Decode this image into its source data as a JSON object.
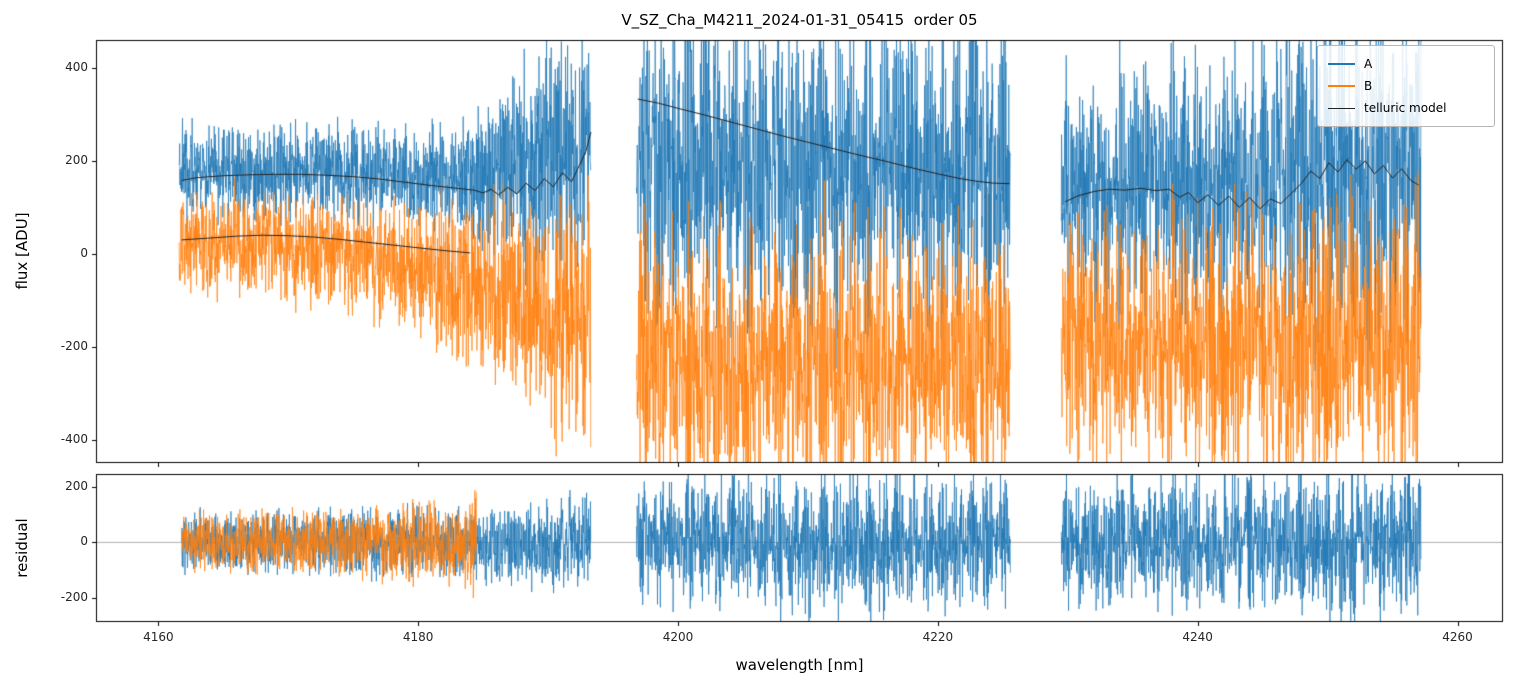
{
  "chart_data": {
    "type": "line",
    "title": "V_SZ_Cha_M4211_2024-01-31_05415  order 05",
    "xlabel": "wavelength [nm]",
    "xlim": [
      4155.2,
      4263.5
    ],
    "x_ticks": [
      4160,
      4180,
      4200,
      4220,
      4240,
      4260
    ],
    "step": 0.02,
    "panels": [
      {
        "ylabel": "flux [ADU]",
        "ylim": [
          -450,
          460
        ],
        "y_ticks": [
          -400,
          -200,
          0,
          200,
          400
        ],
        "zero_line": false
      },
      {
        "ylabel": "residual",
        "ylim": [
          -285,
          245
        ],
        "y_ticks": [
          -200,
          0,
          200
        ],
        "zero_line": true
      }
    ],
    "legend": [
      {
        "label": "A",
        "color": "#1f77b4",
        "lw": 2
      },
      {
        "label": "B",
        "color": "#ff7f0e",
        "lw": 2
      },
      {
        "label": "telluric model",
        "color": "#222222",
        "lw": 1
      }
    ],
    "series": [
      {
        "name": "A",
        "type": "noisy",
        "panel": 0,
        "color": "#1f77b4",
        "lw": 0.7,
        "seed": 3,
        "segments": [
          {
            "range": [
              4161.6,
              4193.3
            ],
            "period": 0.4,
            "mix": 0.35,
            "base": [
              [
                4162,
                175
              ],
              [
                4170,
                178
              ],
              [
                4178,
                170
              ],
              [
                4183,
                162
              ],
              [
                4186,
                168
              ],
              [
                4189,
                190
              ],
              [
                4193.3,
                230
              ]
            ],
            "amp": [
              [
                4162,
                130
              ],
              [
                4178,
                130
              ],
              [
                4183,
                150
              ],
              [
                4186,
                220
              ],
              [
                4189,
                300
              ],
              [
                4193.3,
                360
              ]
            ]
          },
          {
            "range": [
              4196.8,
              4225.6
            ],
            "period": 1.15,
            "mix": 0.7,
            "base": [
              [
                4197,
                200
              ],
              [
                4205,
                190
              ],
              [
                4215,
                185
              ],
              [
                4225.6,
                185
              ]
            ],
            "amp": [
              [
                4197,
                460
              ],
              [
                4205,
                480
              ],
              [
                4215,
                450
              ],
              [
                4225.6,
                440
              ]
            ]
          },
          {
            "range": [
              4229.5,
              4257.2
            ],
            "period": 1.0,
            "mix": 0.65,
            "base": [
              [
                4230,
                155
              ],
              [
                4240,
                150
              ],
              [
                4250,
                175
              ],
              [
                4257.2,
                185
              ]
            ],
            "amp": [
              [
                4230,
                330
              ],
              [
                4240,
                380
              ],
              [
                4250,
                480
              ],
              [
                4257.2,
                520
              ]
            ]
          }
        ]
      },
      {
        "name": "B",
        "type": "noisy",
        "panel": 0,
        "color": "#ff7f0e",
        "lw": 0.7,
        "seed": 7,
        "segments": [
          {
            "range": [
              4161.6,
              4193.3
            ],
            "period": 0.4,
            "mix": 0.35,
            "base": [
              [
                4162,
                28
              ],
              [
                4168,
                22
              ],
              [
                4174,
                2
              ],
              [
                4180,
                -35
              ],
              [
                4184,
                -65
              ],
              [
                4188,
                -105
              ],
              [
                4193.3,
                -140
              ]
            ],
            "amp": [
              [
                4162,
                140
              ],
              [
                4170,
                150
              ],
              [
                4178,
                170
              ],
              [
                4184,
                220
              ],
              [
                4189,
                300
              ],
              [
                4193.3,
                380
              ]
            ]
          },
          {
            "range": [
              4196.8,
              4225.6
            ],
            "period": 1.15,
            "mix": 0.7,
            "base": [
              [
                4197,
                -225
              ],
              [
                4205,
                -245
              ],
              [
                4215,
                -240
              ],
              [
                4225.6,
                -230
              ]
            ],
            "amp": [
              [
                4197,
                400
              ],
              [
                4205,
                430
              ],
              [
                4215,
                420
              ],
              [
                4225.6,
                400
              ]
            ]
          },
          {
            "range": [
              4229.5,
              4257.2
            ],
            "period": 1.0,
            "mix": 0.65,
            "base": [
              [
                4230,
                -185
              ],
              [
                4240,
                -205
              ],
              [
                4250,
                -195
              ],
              [
                4257.2,
                -190
              ]
            ],
            "amp": [
              [
                4230,
                360
              ],
              [
                4240,
                400
              ],
              [
                4250,
                440
              ],
              [
                4257.2,
                450
              ]
            ]
          }
        ]
      },
      {
        "name": "residual A",
        "type": "noisy",
        "panel": 1,
        "color": "#1f77b4",
        "lw": 0.7,
        "seed": 13,
        "segments": [
          {
            "range": [
              4161.8,
              4193.3
            ],
            "period": 0.4,
            "mix": 0.3,
            "base": [
              [
                4162,
                0
              ],
              [
                4193.3,
                0
              ]
            ],
            "amp": [
              [
                4162,
                130
              ],
              [
                4175,
                150
              ],
              [
                4184,
                160
              ],
              [
                4188,
                190
              ],
              [
                4193.3,
                220
              ]
            ]
          },
          {
            "range": [
              4196.8,
              4225.6
            ],
            "period": 1.15,
            "mix": 0.75,
            "base": [
              [
                4197,
                0
              ],
              [
                4225.6,
                0
              ]
            ],
            "amp": [
              [
                4197,
                300
              ],
              [
                4210,
                360
              ],
              [
                4225.6,
                320
              ]
            ]
          },
          {
            "range": [
              4229.5,
              4257.2
            ],
            "period": 1.0,
            "mix": 0.7,
            "base": [
              [
                4230,
                0
              ],
              [
                4257.2,
                0
              ]
            ],
            "amp": [
              [
                4230,
                300
              ],
              [
                4245,
                360
              ],
              [
                4257.2,
                400
              ]
            ]
          }
        ]
      },
      {
        "name": "residual B",
        "type": "noisy",
        "panel": 1,
        "color": "#ff7f0e",
        "lw": 0.7,
        "seed": 21,
        "segments": [
          {
            "range": [
              4161.8,
              4184.5
            ],
            "period": 0.4,
            "mix": 0.3,
            "base": [
              [
                4162,
                0
              ],
              [
                4184.5,
                0
              ]
            ],
            "amp": [
              [
                4162,
                130
              ],
              [
                4175,
                160
              ],
              [
                4183,
                180
              ],
              [
                4184.5,
                300
              ]
            ]
          }
        ]
      },
      {
        "name": "telluric model",
        "type": "model",
        "panel": 0,
        "color": "#222222",
        "lw": 1,
        "paths": [
          [
            [
              4161.8,
              158
            ],
            [
              4163,
              164
            ],
            [
              4165,
              168
            ],
            [
              4167,
              170
            ],
            [
              4169,
              171
            ],
            [
              4171,
              171
            ],
            [
              4173,
              169
            ],
            [
              4175,
              166
            ],
            [
              4177,
              161
            ],
            [
              4179,
              154
            ],
            [
              4181,
              147
            ],
            [
              4183,
              141
            ],
            [
              4184.3,
              137
            ],
            [
              4185,
              131
            ],
            [
              4185.6,
              139
            ],
            [
              4186.2,
              127
            ],
            [
              4186.9,
              143
            ],
            [
              4187.6,
              129
            ],
            [
              4188.3,
              152
            ],
            [
              4189,
              136
            ],
            [
              4189.7,
              162
            ],
            [
              4190.4,
              144
            ],
            [
              4191.1,
              175
            ],
            [
              4191.8,
              155
            ],
            [
              4192.4,
              190
            ],
            [
              4192.9,
              220
            ],
            [
              4193.3,
              262
            ]
          ],
          [
            [
              4161.8,
              30
            ],
            [
              4164,
              34
            ],
            [
              4166,
              38
            ],
            [
              4168,
              40
            ],
            [
              4170,
              39
            ],
            [
              4172,
              36
            ],
            [
              4174,
              31
            ],
            [
              4176,
              25
            ],
            [
              4178,
              19
            ],
            [
              4180,
              13
            ],
            [
              4182,
              7
            ],
            [
              4184,
              2
            ]
          ],
          [
            [
              4196.9,
              333
            ],
            [
              4198.5,
              324
            ],
            [
              4200,
              313
            ],
            [
              4202,
              299
            ],
            [
              4204,
              284
            ],
            [
              4206,
              269
            ],
            [
              4208,
              254
            ],
            [
              4210,
              240
            ],
            [
              4212,
              226
            ],
            [
              4214,
              212
            ],
            [
              4216,
              199
            ],
            [
              4218,
              185
            ],
            [
              4220,
              172
            ],
            [
              4221.5,
              163
            ],
            [
              4223,
              156
            ],
            [
              4224.3,
              152
            ],
            [
              4225.5,
              151
            ]
          ],
          [
            [
              4229.8,
              112
            ],
            [
              4230.8,
              125
            ],
            [
              4232,
              134
            ],
            [
              4233.2,
              139
            ],
            [
              4234.4,
              137
            ],
            [
              4235.6,
              141
            ],
            [
              4236.8,
              136
            ],
            [
              4237.8,
              139
            ],
            [
              4238.6,
              122
            ],
            [
              4239.3,
              132
            ],
            [
              4240,
              110
            ],
            [
              4240.8,
              127
            ],
            [
              4241.6,
              104
            ],
            [
              4242.4,
              124
            ],
            [
              4243.2,
              100
            ],
            [
              4244,
              121
            ],
            [
              4244.8,
              97
            ],
            [
              4245.6,
              118
            ],
            [
              4246.4,
              108
            ],
            [
              4247.2,
              130
            ],
            [
              4248,
              152
            ],
            [
              4248.7,
              178
            ],
            [
              4249.4,
              162
            ],
            [
              4250.1,
              196
            ],
            [
              4250.8,
              176
            ],
            [
              4251.5,
              203
            ],
            [
              4252.2,
              182
            ],
            [
              4252.9,
              200
            ],
            [
              4253.6,
              172
            ],
            [
              4254.3,
              190
            ],
            [
              4255,
              163
            ],
            [
              4255.7,
              183
            ],
            [
              4256.4,
              158
            ],
            [
              4257,
              148
            ]
          ]
        ]
      }
    ]
  }
}
